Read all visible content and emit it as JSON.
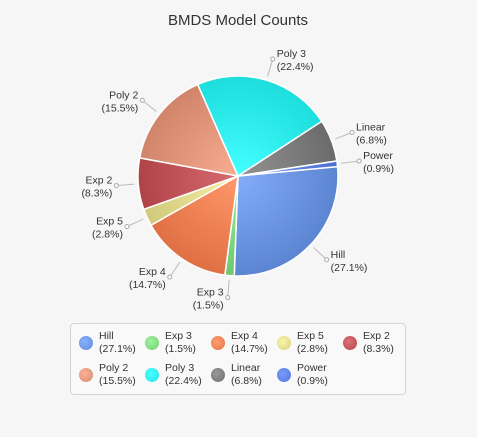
{
  "chart_data": {
    "type": "pie",
    "title": "BMDS Model Counts",
    "slices": [
      {
        "name": "Hill",
        "pct_label": "(27.1%)",
        "value": 27.1,
        "color": "#6b94e0"
      },
      {
        "name": "Exp 3",
        "pct_label": "(1.5%)",
        "value": 1.5,
        "color": "#7ed67e"
      },
      {
        "name": "Exp 4",
        "pct_label": "(14.7%)",
        "value": 14.7,
        "color": "#ef7f52"
      },
      {
        "name": "Exp 5",
        "pct_label": "(2.8%)",
        "value": 2.8,
        "color": "#dfd88a"
      },
      {
        "name": "Exp 2",
        "pct_label": "(8.3%)",
        "value": 8.3,
        "color": "#bf5256"
      },
      {
        "name": "Poly 2",
        "pct_label": "(15.5%)",
        "value": 15.5,
        "color": "#df947a"
      },
      {
        "name": "Poly 3",
        "pct_label": "(22.4%)",
        "value": 22.4,
        "color": "#2cecec"
      },
      {
        "name": "Linear",
        "pct_label": "(6.8%)",
        "value": 6.8,
        "color": "#7a7a7a"
      },
      {
        "name": "Power",
        "pct_label": "(0.9%)",
        "value": 0.9,
        "color": "#5b7fe0"
      }
    ],
    "legend_position": "bottom"
  }
}
